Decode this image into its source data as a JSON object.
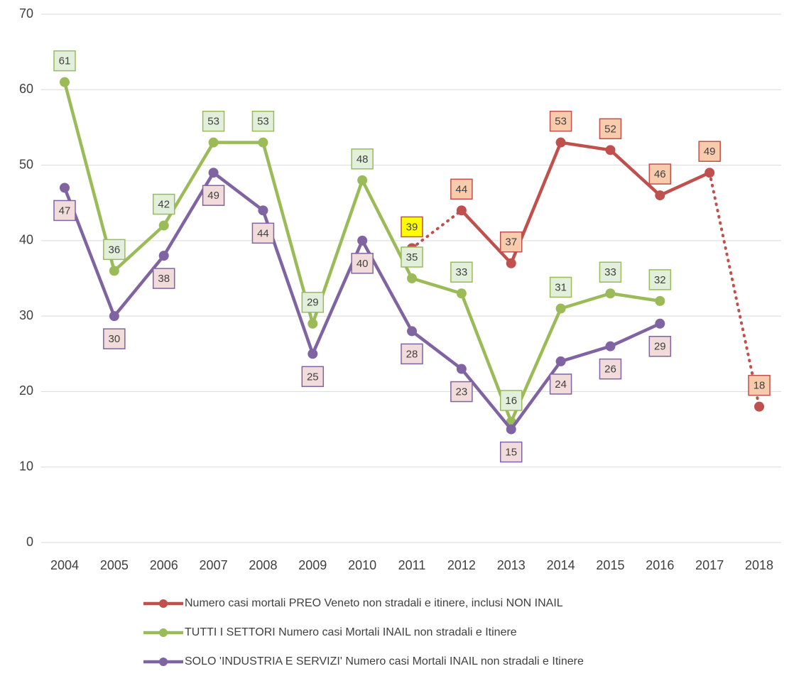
{
  "chart_data": {
    "type": "line",
    "categories": [
      "2004",
      "2005",
      "2006",
      "2007",
      "2008",
      "2009",
      "2010",
      "2011",
      "2012",
      "2013",
      "2014",
      "2015",
      "2016",
      "2017",
      "2018"
    ],
    "ylim": [
      0,
      70
    ],
    "yticks": [
      0,
      10,
      20,
      30,
      40,
      50,
      60,
      70
    ],
    "grid": true,
    "legend": "bottom",
    "series": [
      {
        "name": "Numero casi mortali PREO Veneto non stradali e itinere, inclusi NON INAIL",
        "color": "#c0504d",
        "label_fill": "#f8cbad",
        "label_position": "above",
        "dotted_segments": [
          7,
          13
        ],
        "highlight_labels": [
          {
            "index": 7,
            "fill": "#ffff00"
          }
        ],
        "values": [
          null,
          null,
          null,
          null,
          null,
          null,
          null,
          39,
          44,
          37,
          53,
          52,
          46,
          49,
          18
        ]
      },
      {
        "name": "TUTTI I SETTORI Numero casi Mortali INAIL non stradali e Itinere",
        "color": "#9bbb59",
        "label_fill": "#e2efda",
        "label_position": "above",
        "values": [
          61,
          36,
          42,
          53,
          53,
          29,
          48,
          35,
          33,
          16,
          31,
          33,
          32,
          null,
          null
        ]
      },
      {
        "name": "SOLO 'INDUSTRIA E SERVIZI' Numero casi Mortali INAIL non stradali e Itinere",
        "color": "#8064a2",
        "label_fill": "#f2dcdb",
        "label_position": "below",
        "values": [
          47,
          30,
          38,
          49,
          44,
          25,
          40,
          28,
          23,
          15,
          24,
          26,
          29,
          null,
          null
        ]
      }
    ]
  }
}
